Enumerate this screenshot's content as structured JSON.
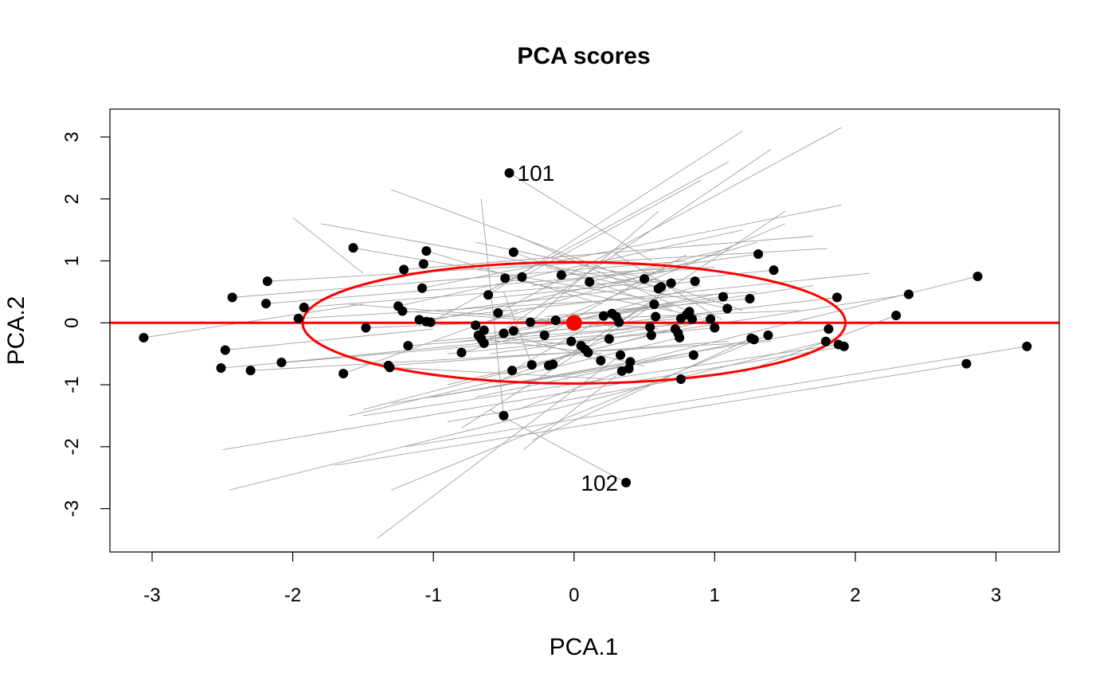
{
  "chart_data": {
    "type": "scatter",
    "title": "PCA scores",
    "xlabel": "PCA.1",
    "ylabel": "PCA.2",
    "xlim": [
      -3.3,
      3.45
    ],
    "ylim": [
      -3.7,
      3.45
    ],
    "xticks": [
      -3,
      -2,
      -1,
      0,
      1,
      2,
      3
    ],
    "yticks": [
      -3,
      -2,
      -1,
      0,
      1,
      2,
      3
    ],
    "xtick_labels": [
      "-3",
      "-2",
      "-1",
      "0",
      "1",
      "2",
      "3"
    ],
    "ytick_labels": [
      "-3",
      "-2",
      "-1",
      "0",
      "1",
      "2",
      "3"
    ],
    "grid": false,
    "colors": {
      "points": "#000000",
      "segments": "#a0a0a0",
      "reference": "#ff0000"
    },
    "reference": {
      "center": [
        0,
        0
      ],
      "hline_y": 0,
      "ellipse_radii": [
        1.93,
        0.98
      ]
    },
    "labels": [
      {
        "text": "101",
        "x": -0.46,
        "y": 2.42,
        "side": "right"
      },
      {
        "text": "102",
        "x": 0.37,
        "y": -2.58,
        "side": "left"
      }
    ],
    "points": [
      [
        -3.06,
        -0.24
      ],
      [
        -2.51,
        -0.73
      ],
      [
        -2.48,
        -0.44
      ],
      [
        -2.43,
        0.41
      ],
      [
        -2.3,
        -0.77
      ],
      [
        -2.19,
        0.31
      ],
      [
        -2.18,
        0.67
      ],
      [
        -2.08,
        -0.64
      ],
      [
        -1.96,
        0.07
      ],
      [
        -1.92,
        0.25
      ],
      [
        -1.64,
        -0.82
      ],
      [
        -1.57,
        1.21
      ],
      [
        -1.48,
        -0.08
      ],
      [
        -1.32,
        -0.69
      ],
      [
        -1.31,
        -0.72
      ],
      [
        -1.25,
        0.27
      ],
      [
        -1.22,
        0.19
      ],
      [
        -1.21,
        0.86
      ],
      [
        -1.18,
        -0.37
      ],
      [
        -1.1,
        0.05
      ],
      [
        -1.08,
        0.56
      ],
      [
        -1.07,
        0.95
      ],
      [
        -1.05,
        1.16
      ],
      [
        -1.05,
        0.02
      ],
      [
        -1.02,
        0.01
      ],
      [
        -0.8,
        -0.48
      ],
      [
        -0.7,
        -0.04
      ],
      [
        -0.68,
        -0.2
      ],
      [
        -0.66,
        -0.26
      ],
      [
        -0.64,
        -0.12
      ],
      [
        -0.64,
        -0.33
      ],
      [
        -0.61,
        0.45
      ],
      [
        -0.54,
        0.16
      ],
      [
        -0.5,
        -0.17
      ],
      [
        -0.5,
        -1.5
      ],
      [
        -0.49,
        0.72
      ],
      [
        -0.46,
        2.42
      ],
      [
        -0.44,
        -0.77
      ],
      [
        -0.43,
        1.14
      ],
      [
        -0.43,
        -0.13
      ],
      [
        -0.37,
        0.74
      ],
      [
        -0.31,
        0.01
      ],
      [
        -0.3,
        -0.68
      ],
      [
        -0.21,
        -0.2
      ],
      [
        -0.18,
        -0.69
      ],
      [
        -0.15,
        -0.67
      ],
      [
        -0.13,
        0.04
      ],
      [
        -0.09,
        0.77
      ],
      [
        -0.02,
        -0.3
      ],
      [
        0.05,
        -0.37
      ],
      [
        0.08,
        -0.43
      ],
      [
        0.1,
        -0.48
      ],
      [
        0.11,
        0.66
      ],
      [
        0.19,
        -0.61
      ],
      [
        0.21,
        0.11
      ],
      [
        0.25,
        -0.26
      ],
      [
        0.27,
        0.15
      ],
      [
        0.3,
        0.1
      ],
      [
        0.32,
        0.01
      ],
      [
        0.33,
        -0.52
      ],
      [
        0.34,
        -0.78
      ],
      [
        0.37,
        -2.58
      ],
      [
        0.39,
        -0.74
      ],
      [
        0.4,
        -0.63
      ],
      [
        0.5,
        0.71
      ],
      [
        0.54,
        -0.07
      ],
      [
        0.55,
        -0.2
      ],
      [
        0.57,
        0.3
      ],
      [
        0.58,
        0.1
      ],
      [
        0.6,
        0.55
      ],
      [
        0.62,
        0.58
      ],
      [
        0.69,
        0.64
      ],
      [
        0.72,
        -0.1
      ],
      [
        0.74,
        -0.17
      ],
      [
        0.75,
        -0.24
      ],
      [
        0.76,
        -0.91
      ],
      [
        0.76,
        0.07
      ],
      [
        0.8,
        0.13
      ],
      [
        0.82,
        0.18
      ],
      [
        0.84,
        0.06
      ],
      [
        0.85,
        -0.52
      ],
      [
        0.86,
        0.67
      ],
      [
        0.97,
        0.06
      ],
      [
        1.0,
        -0.08
      ],
      [
        1.06,
        0.42
      ],
      [
        1.09,
        0.23
      ],
      [
        1.25,
        0.39
      ],
      [
        1.26,
        -0.25
      ],
      [
        1.28,
        -0.27
      ],
      [
        1.31,
        1.11
      ],
      [
        1.38,
        -0.2
      ],
      [
        1.42,
        0.85
      ],
      [
        1.79,
        -0.3
      ],
      [
        1.81,
        -0.1
      ],
      [
        1.87,
        0.41
      ],
      [
        1.88,
        -0.35
      ],
      [
        1.92,
        -0.38
      ],
      [
        2.29,
        0.12
      ],
      [
        2.38,
        0.46
      ],
      [
        2.79,
        -0.66
      ],
      [
        2.87,
        0.75
      ],
      [
        3.22,
        -0.38
      ]
    ],
    "segments": [
      [
        -3.06,
        -0.24,
        -1.5,
        0.3
      ],
      [
        -2.51,
        -0.73,
        0.2,
        -0.2
      ],
      [
        -2.48,
        -0.44,
        -1.0,
        -0.1
      ],
      [
        -2.43,
        0.41,
        0.8,
        1.0
      ],
      [
        -2.3,
        -0.77,
        1.4,
        -0.3
      ],
      [
        -2.19,
        0.31,
        1.0,
        0.9
      ],
      [
        -2.18,
        0.67,
        1.8,
        1.2
      ],
      [
        -2.08,
        -0.64,
        0.4,
        -0.1
      ],
      [
        -1.96,
        0.07,
        1.3,
        0.5
      ],
      [
        -1.92,
        0.25,
        0.6,
        0.7
      ],
      [
        -1.64,
        -0.82,
        -0.4,
        0.2
      ],
      [
        -1.57,
        1.21,
        0.5,
        0.4
      ],
      [
        -1.48,
        -0.08,
        1.6,
        0.2
      ],
      [
        -1.32,
        -0.69,
        1.1,
        -0.3
      ],
      [
        -1.25,
        0.27,
        1.2,
        1.5
      ],
      [
        -1.21,
        0.86,
        1.7,
        1.4
      ],
      [
        -1.18,
        -0.37,
        0.9,
        0.0
      ],
      [
        -1.1,
        0.05,
        2.1,
        0.8
      ],
      [
        -1.08,
        0.56,
        1.9,
        1.9
      ],
      [
        -1.05,
        1.16,
        0.2,
        0.3
      ],
      [
        -1.02,
        0.01,
        1.1,
        2.6
      ],
      [
        -0.8,
        -0.48,
        0.9,
        0.6
      ],
      [
        -0.7,
        -0.04,
        1.3,
        1.3
      ],
      [
        -0.64,
        -0.33,
        1.4,
        2.8
      ],
      [
        -0.61,
        0.45,
        1.2,
        3.1
      ],
      [
        -0.54,
        0.16,
        1.9,
        3.15
      ],
      [
        -0.49,
        0.72,
        0.9,
        0.1
      ],
      [
        -0.46,
        2.42,
        0.55,
        1.0
      ],
      [
        -0.43,
        1.14,
        0.7,
        0.2
      ],
      [
        -0.37,
        0.74,
        0.9,
        2.3
      ],
      [
        -0.31,
        0.01,
        0.6,
        1.8
      ],
      [
        -0.21,
        -0.2,
        0.8,
        1.1
      ],
      [
        -0.13,
        0.04,
        1.5,
        1.6
      ],
      [
        -0.09,
        0.77,
        0.9,
        0.9
      ],
      [
        0.11,
        0.66,
        1.1,
        1.2
      ],
      [
        0.21,
        0.11,
        1.7,
        0.6
      ],
      [
        0.32,
        0.01,
        1.5,
        1.8
      ],
      [
        0.5,
        0.71,
        1.2,
        0.2
      ],
      [
        0.6,
        0.55,
        -1.3,
        2.15
      ],
      [
        0.69,
        0.64,
        -0.7,
        1.3
      ],
      [
        0.76,
        0.07,
        -1.0,
        -0.3
      ],
      [
        0.86,
        0.67,
        -0.9,
        0.2
      ],
      [
        1.06,
        0.42,
        -0.4,
        0.0
      ],
      [
        1.25,
        0.39,
        -0.2,
        0.1
      ],
      [
        1.31,
        1.11,
        -0.3,
        0.6
      ],
      [
        1.42,
        0.85,
        -0.6,
        0.4
      ],
      [
        1.87,
        0.41,
        -0.8,
        -0.3
      ],
      [
        2.29,
        0.12,
        1.2,
        -0.8
      ],
      [
        2.38,
        0.46,
        0.5,
        -0.2
      ],
      [
        2.87,
        0.75,
        0.3,
        -0.7
      ],
      [
        3.22,
        -0.38,
        -1.2,
        -2.0
      ],
      [
        2.79,
        -0.66,
        -1.7,
        -2.3
      ],
      [
        1.92,
        -0.38,
        -2.5,
        -2.05
      ],
      [
        1.88,
        -0.35,
        -1.5,
        -1.5
      ],
      [
        1.81,
        -0.1,
        -1.0,
        -1.2
      ],
      [
        1.79,
        -0.3,
        -2.45,
        -2.7
      ],
      [
        1.38,
        -0.2,
        -1.3,
        -2.7
      ],
      [
        1.28,
        -0.27,
        -0.7,
        -1.2
      ],
      [
        1.26,
        -0.25,
        -0.3,
        -1.9
      ],
      [
        1.0,
        -0.08,
        -0.9,
        -0.5
      ],
      [
        0.97,
        0.06,
        -1.5,
        -1.4
      ],
      [
        0.85,
        -0.52,
        -1.3,
        -1.3
      ],
      [
        0.76,
        -0.91,
        -0.9,
        -1.6
      ],
      [
        0.75,
        -0.24,
        -1.6,
        -1.5
      ],
      [
        0.72,
        -0.1,
        -0.6,
        -0.5
      ],
      [
        0.57,
        0.3,
        -0.8,
        -1.7
      ],
      [
        0.55,
        -0.2,
        -0.9,
        -1.0
      ],
      [
        0.4,
        -0.63,
        -1.0,
        -1.2
      ],
      [
        0.39,
        -0.74,
        -0.4,
        -1.4
      ],
      [
        0.37,
        -2.58,
        -0.6,
        -1.4
      ],
      [
        0.34,
        -0.78,
        -0.36,
        -2.05
      ],
      [
        0.33,
        -0.52,
        -1.4,
        -3.48
      ],
      [
        0.25,
        -0.26,
        -0.5,
        -0.9
      ],
      [
        0.19,
        -0.61,
        -0.3,
        -0.3
      ],
      [
        0.1,
        -0.48,
        0.5,
        -0.7
      ],
      [
        0.05,
        -0.37,
        -0.7,
        -0.2
      ],
      [
        -0.02,
        -0.3,
        1.0,
        0.1
      ],
      [
        -0.15,
        -0.67,
        0.6,
        0.4
      ],
      [
        -0.3,
        -0.68,
        -0.5,
        0.5
      ],
      [
        -0.44,
        -0.77,
        0.3,
        0.2
      ],
      [
        -0.5,
        -1.5,
        -0.66,
        2.0
      ],
      [
        -0.66,
        -0.26,
        0.2,
        -0.5
      ],
      [
        -1.31,
        -0.72,
        0.2,
        -0.9
      ],
      [
        -1.22,
        0.19,
        0.6,
        -0.1
      ],
      [
        -1.05,
        0.02,
        0.8,
        0.9
      ],
      [
        -0.68,
        -0.2,
        0.7,
        0.3
      ],
      [
        -0.5,
        -0.17,
        1.1,
        0.5
      ],
      [
        1.09,
        0.23,
        -0.2,
        0.9
      ],
      [
        0.82,
        0.18,
        -0.4,
        1.4
      ],
      [
        0.62,
        0.58,
        -1.8,
        1.6
      ],
      [
        0.54,
        -0.07,
        -1.6,
        0.3
      ],
      [
        -2.0,
        1.7,
        -1.5,
        0.8
      ],
      [
        0.29,
        1.12,
        1.05,
        0.05
      ]
    ]
  }
}
